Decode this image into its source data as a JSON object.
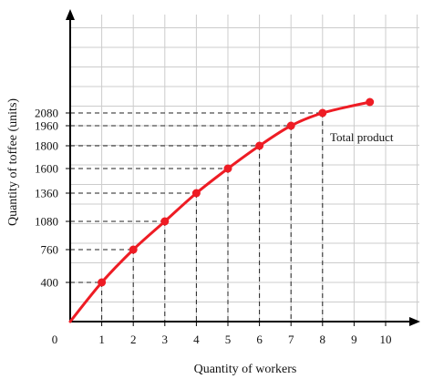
{
  "chart_data": {
    "type": "line",
    "xlabel": "Quantity of workers",
    "ylabel": "Quantity of toffee (units)",
    "origin_label": "0",
    "x_ticks": [
      1,
      2,
      3,
      4,
      5,
      6,
      7,
      8,
      9,
      10
    ],
    "y_ticks": [
      400,
      760,
      1080,
      1360,
      1600,
      1800,
      1960,
      2080
    ],
    "xlim": [
      0,
      10.5
    ],
    "ylim": [
      0,
      2900
    ],
    "grid": true,
    "colors": {
      "curve": "#ee1c24",
      "grid": "#cccccc",
      "axis": "#000000"
    },
    "series": [
      {
        "name": "Total product",
        "x": [
          0,
          1,
          2,
          3,
          4,
          5,
          6,
          7,
          8,
          9.5
        ],
        "y": [
          0,
          400,
          760,
          1080,
          1360,
          1600,
          1800,
          1960,
          2080,
          2180
        ]
      }
    ],
    "marker_x": [
      1,
      2,
      3,
      4,
      5,
      6,
      7,
      8,
      9.5
    ],
    "dashed_guides_x": [
      1,
      2,
      3,
      4,
      5,
      6,
      7,
      8
    ]
  }
}
